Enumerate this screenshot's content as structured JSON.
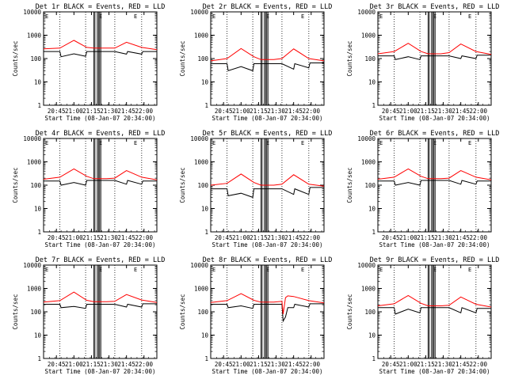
{
  "figure": {
    "xlabel": "Start Time (08-Jan-07 20:34:00)",
    "ylabel": "Counts/sec",
    "x_ticks": [
      "20:45",
      "21:00",
      "21:15",
      "21:30",
      "21:45",
      "22:00"
    ],
    "y_ticks": [
      "1",
      "10",
      "100",
      "1000",
      "10000"
    ],
    "colors": {
      "events": "#000000",
      "lld": "#ff0000",
      "axes": "#000000"
    }
  },
  "chart_data": [
    {
      "type": "line",
      "title": "Det 1r BLACK = Events, RED = LLD",
      "xlim": [
        "20:34",
        "22:11"
      ],
      "ylim": [
        1,
        10000
      ],
      "yscale": "log",
      "grid": false,
      "series": [
        {
          "name": "Events",
          "x": [
            "20:34",
            "20:48",
            "20:49",
            "21:00",
            "21:10",
            "21:11",
            "21:17",
            "21:28",
            "21:35",
            "21:45",
            "21:46",
            "21:58",
            "21:59",
            "22:11"
          ],
          "values": [
            200,
            200,
            120,
            160,
            125,
            200,
            200,
            200,
            200,
            155,
            200,
            155,
            200,
            200
          ]
        },
        {
          "name": "LLD",
          "x": [
            "20:34",
            "20:48",
            "21:00",
            "21:11",
            "21:17",
            "21:28",
            "21:35",
            "21:45",
            "21:58",
            "22:11"
          ],
          "values": [
            260,
            280,
            600,
            300,
            280,
            280,
            280,
            500,
            300,
            240
          ]
        }
      ],
      "overlay_ticks": "E"
    },
    {
      "type": "line",
      "title": "Det 2r BLACK = Events, RED = LLD",
      "xlim": [
        "20:34",
        "22:11"
      ],
      "ylim": [
        1,
        10000
      ],
      "yscale": "log",
      "grid": false,
      "series": [
        {
          "name": "Events",
          "x": [
            "20:34",
            "20:48",
            "20:49",
            "21:00",
            "21:10",
            "21:11",
            "21:17",
            "21:28",
            "21:35",
            "21:45",
            "21:46",
            "21:58",
            "21:59",
            "22:11"
          ],
          "values": [
            60,
            60,
            30,
            45,
            30,
            60,
            60,
            60,
            60,
            35,
            60,
            40,
            65,
            65
          ]
        },
        {
          "name": "LLD",
          "x": [
            "20:34",
            "20:48",
            "21:00",
            "21:11",
            "21:17",
            "21:28",
            "21:35",
            "21:45",
            "21:58",
            "22:11"
          ],
          "values": [
            80,
            100,
            270,
            120,
            90,
            90,
            100,
            260,
            100,
            80
          ]
        }
      ],
      "overlay_ticks": "E"
    },
    {
      "type": "line",
      "title": "Det 3r BLACK = Events, RED = LLD",
      "xlim": [
        "20:34",
        "22:11"
      ],
      "ylim": [
        1,
        10000
      ],
      "yscale": "log",
      "grid": false,
      "series": [
        {
          "name": "Events",
          "x": [
            "20:34",
            "20:48",
            "20:49",
            "21:00",
            "21:10",
            "21:11",
            "21:17",
            "21:28",
            "21:35",
            "21:45",
            "21:46",
            "21:58",
            "21:59",
            "22:11"
          ],
          "values": [
            130,
            130,
            90,
            120,
            90,
            130,
            130,
            130,
            130,
            100,
            130,
            100,
            140,
            140
          ]
        },
        {
          "name": "LLD",
          "x": [
            "20:34",
            "20:48",
            "21:00",
            "21:11",
            "21:17",
            "21:28",
            "21:35",
            "21:45",
            "21:58",
            "22:11"
          ],
          "values": [
            160,
            200,
            450,
            200,
            160,
            160,
            180,
            420,
            200,
            150
          ]
        }
      ],
      "overlay_ticks": "E"
    },
    {
      "type": "line",
      "title": "Det 4r BLACK = Events, RED = LLD",
      "xlim": [
        "20:34",
        "22:11"
      ],
      "ylim": [
        1,
        10000
      ],
      "yscale": "log",
      "grid": false,
      "series": [
        {
          "name": "Events",
          "x": [
            "20:34",
            "20:48",
            "20:49",
            "21:00",
            "21:10",
            "21:11",
            "21:17",
            "21:28",
            "21:35",
            "21:45",
            "21:46",
            "21:58",
            "21:59",
            "22:11"
          ],
          "values": [
            150,
            150,
            100,
            130,
            100,
            160,
            160,
            160,
            160,
            110,
            160,
            110,
            150,
            150
          ]
        },
        {
          "name": "LLD",
          "x": [
            "20:34",
            "20:48",
            "21:00",
            "21:11",
            "21:17",
            "21:28",
            "21:35",
            "21:45",
            "21:58",
            "22:11"
          ],
          "values": [
            180,
            220,
            500,
            240,
            190,
            190,
            200,
            420,
            220,
            170
          ]
        }
      ],
      "overlay_ticks": "E"
    },
    {
      "type": "line",
      "title": "Det 5r BLACK = Events, RED = LLD",
      "xlim": [
        "20:34",
        "22:11"
      ],
      "ylim": [
        1,
        10000
      ],
      "yscale": "log",
      "grid": false,
      "series": [
        {
          "name": "Events",
          "x": [
            "20:34",
            "20:48",
            "20:49",
            "21:00",
            "21:10",
            "21:11",
            "21:17",
            "21:28",
            "21:35",
            "21:45",
            "21:46",
            "21:58",
            "21:59",
            "22:11"
          ],
          "values": [
            70,
            70,
            35,
            45,
            30,
            70,
            70,
            70,
            70,
            40,
            70,
            40,
            80,
            80
          ]
        },
        {
          "name": "LLD",
          "x": [
            "20:34",
            "20:48",
            "21:00",
            "21:11",
            "21:17",
            "21:28",
            "21:35",
            "21:45",
            "21:58",
            "22:11"
          ],
          "values": [
            100,
            120,
            300,
            130,
            100,
            100,
            110,
            280,
            110,
            90
          ]
        }
      ],
      "overlay_ticks": "E"
    },
    {
      "type": "line",
      "title": "Det 6r BLACK = Events, RED = LLD",
      "xlim": [
        "20:34",
        "22:11"
      ],
      "ylim": [
        1,
        10000
      ],
      "yscale": "log",
      "grid": false,
      "series": [
        {
          "name": "Events",
          "x": [
            "20:34",
            "20:48",
            "20:49",
            "21:00",
            "21:10",
            "21:11",
            "21:17",
            "21:28",
            "21:35",
            "21:45",
            "21:46",
            "21:58",
            "21:59",
            "22:11"
          ],
          "values": [
            150,
            150,
            100,
            130,
            100,
            160,
            160,
            160,
            160,
            110,
            160,
            110,
            150,
            150
          ]
        },
        {
          "name": "LLD",
          "x": [
            "20:34",
            "20:48",
            "21:00",
            "21:11",
            "21:17",
            "21:28",
            "21:35",
            "21:45",
            "21:58",
            "22:11"
          ],
          "values": [
            180,
            220,
            500,
            240,
            190,
            190,
            200,
            420,
            220,
            170
          ]
        }
      ],
      "overlay_ticks": "E"
    },
    {
      "type": "line",
      "title": "Det 7r BLACK = Events, RED = LLD",
      "xlim": [
        "20:34",
        "22:11"
      ],
      "ylim": [
        1,
        10000
      ],
      "yscale": "log",
      "grid": false,
      "series": [
        {
          "name": "Events",
          "x": [
            "20:34",
            "20:48",
            "20:49",
            "21:00",
            "21:10",
            "21:11",
            "21:17",
            "21:28",
            "21:35",
            "21:45",
            "21:46",
            "21:58",
            "21:59",
            "22:11"
          ],
          "values": [
            210,
            210,
            150,
            170,
            140,
            210,
            210,
            210,
            210,
            160,
            210,
            160,
            220,
            220
          ]
        },
        {
          "name": "LLD",
          "x": [
            "20:34",
            "20:48",
            "21:00",
            "21:11",
            "21:17",
            "21:28",
            "21:35",
            "21:45",
            "21:58",
            "22:11"
          ],
          "values": [
            260,
            300,
            700,
            310,
            270,
            270,
            280,
            550,
            320,
            250
          ]
        }
      ],
      "overlay_ticks": "E"
    },
    {
      "type": "line",
      "title": "Det 8r BLACK = Events, RED = LLD",
      "xlim": [
        "20:34",
        "22:11"
      ],
      "ylim": [
        1,
        10000
      ],
      "yscale": "log",
      "grid": false,
      "series": [
        {
          "name": "Events",
          "x": [
            "20:34",
            "20:48",
            "20:49",
            "21:00",
            "21:10",
            "21:11",
            "21:17",
            "21:28",
            "21:35",
            "21:36",
            "21:38",
            "21:40",
            "21:45",
            "21:46",
            "21:58",
            "21:59",
            "22:11"
          ],
          "values": [
            210,
            210,
            150,
            180,
            140,
            210,
            210,
            210,
            210,
            40,
            60,
            150,
            150,
            210,
            160,
            220,
            220
          ]
        },
        {
          "name": "LLD",
          "x": [
            "20:34",
            "20:48",
            "21:00",
            "21:11",
            "21:17",
            "21:28",
            "21:35",
            "21:36",
            "21:38",
            "21:40",
            "21:45",
            "21:58",
            "22:11"
          ],
          "values": [
            250,
            300,
            600,
            310,
            260,
            260,
            280,
            80,
            400,
            480,
            450,
            300,
            240
          ]
        }
      ],
      "overlay_ticks": "E"
    },
    {
      "type": "line",
      "title": "Det 9r BLACK = Events, RED = LLD",
      "xlim": [
        "20:34",
        "22:11"
      ],
      "ylim": [
        1,
        10000
      ],
      "yscale": "log",
      "grid": false,
      "series": [
        {
          "name": "Events",
          "x": [
            "20:34",
            "20:48",
            "20:49",
            "21:00",
            "21:10",
            "21:11",
            "21:17",
            "21:28",
            "21:35",
            "21:45",
            "21:46",
            "21:58",
            "21:59",
            "22:11"
          ],
          "values": [
            150,
            150,
            80,
            130,
            90,
            150,
            150,
            150,
            150,
            90,
            150,
            90,
            140,
            140
          ]
        },
        {
          "name": "LLD",
          "x": [
            "20:34",
            "20:48",
            "21:00",
            "21:11",
            "21:17",
            "21:28",
            "21:35",
            "21:45",
            "21:58",
            "22:11"
          ],
          "values": [
            180,
            220,
            500,
            230,
            180,
            180,
            190,
            430,
            210,
            160
          ]
        }
      ],
      "overlay_ticks": "E"
    }
  ]
}
